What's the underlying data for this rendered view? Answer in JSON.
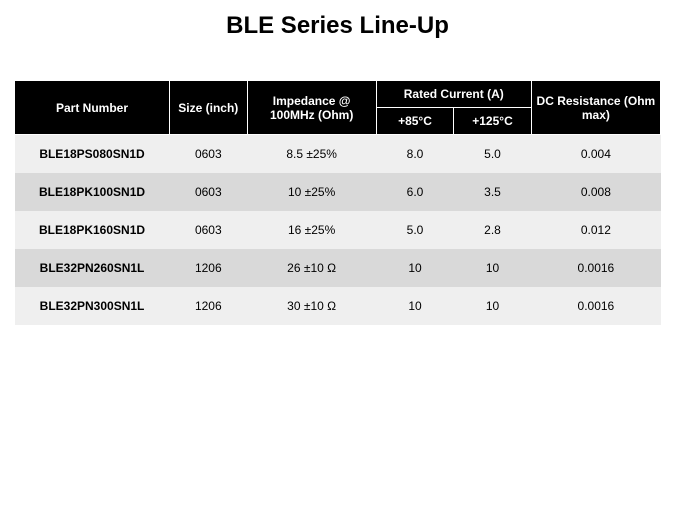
{
  "title": "BLE Series Line-Up",
  "table": {
    "headers": {
      "part_number": "Part Number",
      "size": "Size (inch)",
      "impedance": "Impedance @ 100MHz (Ohm)",
      "rated_current_group": "Rated Current (A)",
      "rated_85": "+85°C",
      "rated_125": "+125°C",
      "dc_resistance": "DC Resistance (Ohm max)"
    },
    "rows": [
      {
        "pn": "BLE18PS080SN1D",
        "size": "0603",
        "imp": "8.5 ±25%",
        "r85": "8.0",
        "r125": "5.0",
        "dcr": "0.004"
      },
      {
        "pn": "BLE18PK100SN1D",
        "size": "0603",
        "imp": "10 ±25%",
        "r85": "6.0",
        "r125": "3.5",
        "dcr": "0.008"
      },
      {
        "pn": "BLE18PK160SN1D",
        "size": "0603",
        "imp": "16 ±25%",
        "r85": "5.0",
        "r125": "2.8",
        "dcr": "0.012"
      },
      {
        "pn": "BLE32PN260SN1L",
        "size": "1206",
        "imp": "26 ±10 Ω",
        "r85": "10",
        "r125": "10",
        "dcr": "0.0016"
      },
      {
        "pn": "BLE32PN300SN1L",
        "size": "1206",
        "imp": "30 ±10 Ω",
        "r85": "10",
        "r125": "10",
        "dcr": "0.0016"
      }
    ]
  },
  "style": {
    "header_bg": "#000000",
    "header_fg": "#ffffff",
    "row_odd_bg": "#efefef",
    "row_even_bg": "#d9d9d9",
    "text_color": "#000000",
    "title_fontsize": 24,
    "header_fontsize": 12,
    "cell_fontsize": 12
  }
}
